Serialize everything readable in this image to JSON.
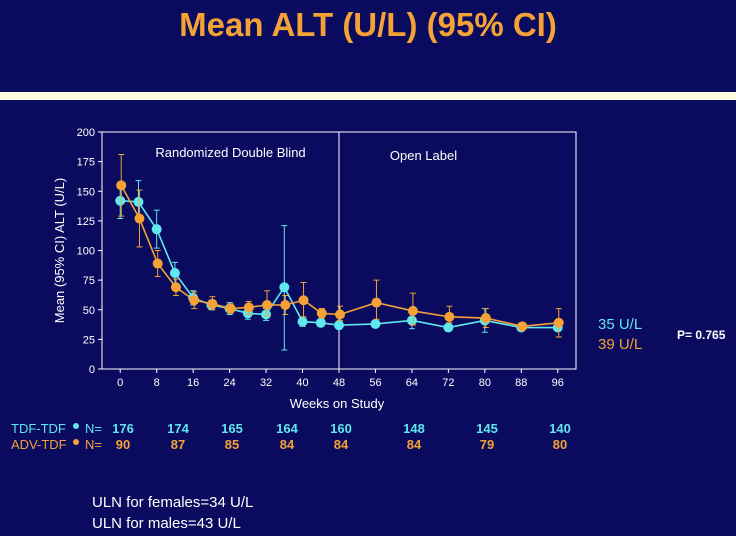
{
  "title": "Mean ALT (U/L) (95% CI)",
  "colors": {
    "tdf": "#5fe8ef",
    "adv": "#f4a236",
    "background": "#0a0a5e",
    "text": "#ffffff"
  },
  "chart_data": {
    "type": "line",
    "xlabel": "Weeks on Study",
    "ylabel": "Mean (95% CI) ALT (U/L)",
    "xlim": [
      -4,
      100
    ],
    "ylim": [
      0,
      200
    ],
    "xticks": [
      0,
      8,
      16,
      24,
      32,
      40,
      48,
      56,
      64,
      72,
      80,
      88,
      96
    ],
    "yticks": [
      0,
      25,
      50,
      75,
      100,
      125,
      150,
      175,
      200
    ],
    "regions": [
      "Randomized Double Blind",
      "Open Label"
    ],
    "divider_x": 48,
    "series": [
      {
        "name": "TDF-TDF",
        "color": "#5fe8ef",
        "x": [
          0,
          4,
          8,
          12,
          16,
          20,
          24,
          28,
          32,
          36,
          40,
          44,
          48,
          56,
          64,
          72,
          80,
          88,
          96
        ],
        "y": [
          142,
          141,
          118,
          81,
          60,
          54,
          51,
          47,
          46,
          69,
          40,
          39,
          37,
          38,
          41,
          35,
          41,
          35,
          35
        ],
        "lower": [
          127,
          128,
          102,
          72,
          54,
          50,
          46,
          42,
          41,
          16,
          36,
          36,
          34,
          35,
          34,
          32,
          31,
          33,
          32
        ],
        "upper": [
          157,
          159,
          134,
          90,
          66,
          58,
          56,
          52,
          51,
          121,
          44,
          42,
          40,
          41,
          48,
          38,
          51,
          37,
          38
        ]
      },
      {
        "name": "ADV-TDF",
        "color": "#f4a236",
        "x": [
          0,
          4,
          8,
          12,
          16,
          20,
          24,
          28,
          32,
          36,
          40,
          44,
          48,
          56,
          64,
          72,
          80,
          88,
          96
        ],
        "y": [
          155,
          127,
          89,
          69,
          58,
          55,
          51,
          52,
          54,
          54,
          58,
          47,
          46,
          56,
          49,
          44,
          43,
          36,
          39
        ],
        "lower": [
          129,
          103,
          78,
          62,
          51,
          50,
          47,
          46,
          45,
          46,
          44,
          43,
          41,
          42,
          37,
          39,
          35,
          33,
          27
        ],
        "upper": [
          181,
          151,
          100,
          76,
          65,
          61,
          55,
          57,
          66,
          62,
          73,
          51,
          53,
          75,
          64,
          53,
          51,
          39,
          51
        ]
      }
    ]
  },
  "end_labels": {
    "tdf": "35 U/L",
    "adv": "39 U/L"
  },
  "pvalue": "P= 0.765",
  "n_table": {
    "tdf_label": "TDF-TDF",
    "adv_label": "ADV-TDF",
    "n_label": "N=",
    "tdf_values": [
      "176",
      "174",
      "165",
      "164",
      "160",
      "148",
      "145",
      "140"
    ],
    "adv_values": [
      "90",
      "87",
      "85",
      "84",
      "84",
      "84",
      "79",
      "80"
    ]
  },
  "footnotes": [
    "ULN for females=34 U/L",
    "ULN for males=43 U/L"
  ]
}
